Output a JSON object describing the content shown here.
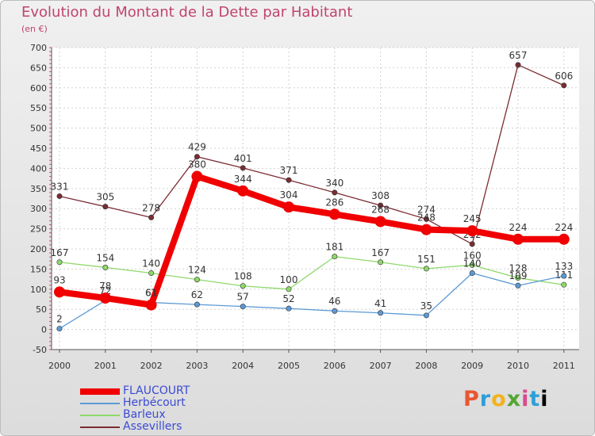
{
  "title": "Evolution du Montant de la Dette par Habitant",
  "subtitle": "(en €)",
  "logo": "Proxiti",
  "chart_data": {
    "type": "line",
    "title": "Evolution du Montant de la Dette par Habitant",
    "ylabel": "(en €)",
    "ylim": [
      -50,
      700
    ],
    "yticks": [
      -50,
      0,
      50,
      100,
      150,
      200,
      250,
      300,
      350,
      400,
      450,
      500,
      550,
      600,
      650,
      700
    ],
    "categories": [
      "2000",
      "2001",
      "2002",
      "2003",
      "2004",
      "2005",
      "2006",
      "2007",
      "2008",
      "2009",
      "2010",
      "2011"
    ],
    "grid": true,
    "legend": "bottom-left",
    "series": [
      {
        "name": "Assevillers",
        "color": "#7a2c33",
        "values": [
          331,
          305,
          278,
          429,
          401,
          371,
          340,
          308,
          274,
          212,
          657,
          606
        ],
        "labels": [
          "331",
          "305",
          "278",
          "429",
          "401",
          "371",
          "340",
          "308",
          "274",
          "212",
          "657",
          "606"
        ]
      },
      {
        "name": "Barleux",
        "color": "#8fd86b",
        "values": [
          167,
          154,
          140,
          124,
          108,
          100,
          181,
          167,
          151,
          160,
          128,
          111
        ],
        "labels": [
          "167",
          "154",
          "140",
          "124",
          "108",
          "100",
          "181",
          "167",
          "151",
          "160",
          "128",
          "111"
        ]
      },
      {
        "name": "Herbécourt",
        "color": "#5c9ad4",
        "values": [
          2,
          72,
          67,
          62,
          57,
          52,
          46,
          41,
          35,
          140,
          109,
          133
        ],
        "labels": [
          "2",
          "72",
          "67",
          "62",
          "57",
          "52",
          "46",
          "41",
          "35",
          "140",
          "109",
          "133"
        ]
      },
      {
        "name": "FLAUCOURT",
        "color": "#f00000",
        "values": [
          93,
          78,
          61,
          380,
          344,
          304,
          286,
          268,
          248,
          245,
          224,
          224
        ],
        "labels": [
          "93",
          "78",
          "61",
          "380",
          "344",
          "304",
          "286",
          "268",
          "248",
          "245",
          "224",
          "224"
        ]
      }
    ],
    "legend_order": [
      "FLAUCOURT",
      "Herbécourt",
      "Barleux",
      "Assevillers"
    ]
  }
}
